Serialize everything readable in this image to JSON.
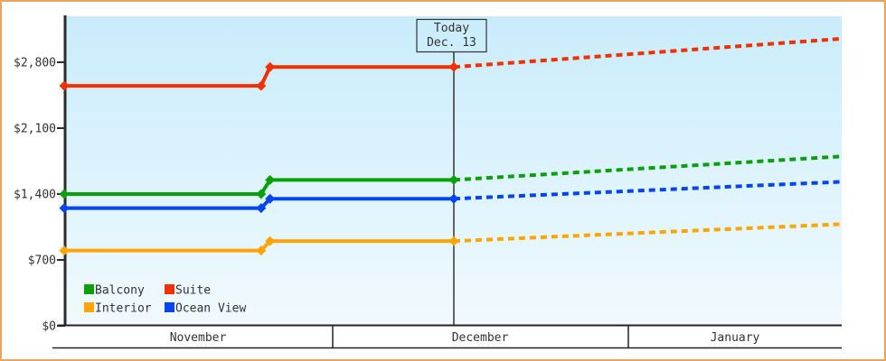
{
  "chart_data": {
    "type": "line",
    "description": "Cabin price history and forecast by category",
    "legend_position": "bottom-left-inside",
    "grid": false,
    "y_axis": {
      "tick_labels": [
        "$2,800",
        "$2,100",
        "$1,400",
        "$700",
        "$0"
      ],
      "tick_values": [
        2800,
        2100,
        1400,
        700,
        0
      ],
      "range": [
        0,
        3150
      ]
    },
    "x_axis": {
      "months": [
        "November",
        "December",
        "January"
      ],
      "month_boundary_days": [
        0,
        30,
        61,
        92
      ]
    },
    "today": {
      "label_line1": "Today",
      "label_line2": "Dec. 13",
      "day": 42.7
    },
    "series": [
      {
        "name": "Balcony",
        "color": "#0aa00a",
        "solid_points": [
          [
            0,
            1400
          ],
          [
            22,
            1400
          ],
          [
            23,
            1550
          ],
          [
            42.7,
            1550
          ]
        ],
        "forecast_points": [
          [
            42.7,
            1550
          ],
          [
            92,
            1800
          ]
        ]
      },
      {
        "name": "Suite",
        "color": "#f23000",
        "solid_points": [
          [
            0,
            2550
          ],
          [
            22,
            2550
          ],
          [
            23,
            2750
          ],
          [
            42.7,
            2750
          ]
        ],
        "forecast_points": [
          [
            42.7,
            2750
          ],
          [
            92,
            3050
          ]
        ]
      },
      {
        "name": "Interior",
        "color": "#ffa405",
        "solid_points": [
          [
            0,
            800
          ],
          [
            22,
            800
          ],
          [
            23,
            900
          ],
          [
            42.7,
            900
          ]
        ],
        "forecast_points": [
          [
            42.7,
            900
          ],
          [
            92,
            1080
          ]
        ]
      },
      {
        "name": "Ocean View",
        "color": "#0545ef",
        "solid_points": [
          [
            0,
            1250
          ],
          [
            22,
            1250
          ],
          [
            23,
            1350
          ],
          [
            42.7,
            1350
          ]
        ],
        "forecast_points": [
          [
            42.7,
            1350
          ],
          [
            92,
            1530
          ]
        ]
      }
    ],
    "styles": {
      "frame_border_color": "#e8a45c",
      "plot_bg_top": "#c9ecfb",
      "plot_bg_bottom": "#f1fafe",
      "axis_color": "#2b2b2b",
      "band_line_color": "#222222",
      "today_line_color": "#333333",
      "text_color": "#333333"
    }
  }
}
